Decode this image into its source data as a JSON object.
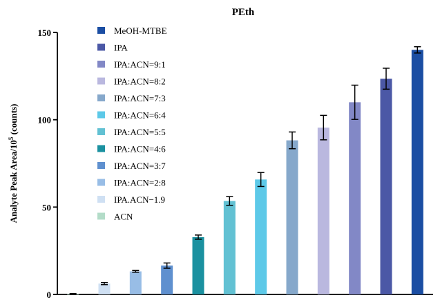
{
  "chart_data": {
    "type": "bar",
    "title": "PEth",
    "xlabel": "",
    "ylabel": "Analyte Peak Area/10",
    "ylabel_superscript": "5",
    "ylabel_suffix": " (counts)",
    "ylim": [
      0,
      150
    ],
    "yticks": [
      0,
      50,
      100,
      150
    ],
    "grid": false,
    "legend_position": "top-left",
    "categories": [
      "ACN",
      "IPA:ACN=1:9",
      "IPA:ACN=2:8",
      "IPA:ACN=3:7",
      "IPA:ACN=4:6",
      "IPA:ACN=5:5",
      "IPA:ACN=6:4",
      "IPA:ACN=7:3",
      "IPA:ACN=8:2",
      "IPA:ACN=9:1",
      "IPA",
      "MeOH-MTBE"
    ],
    "values": [
      0.3,
      6.2,
      13.2,
      16.5,
      32.8,
      53.5,
      65.8,
      88.2,
      95.5,
      110.0,
      123.5,
      140.0
    ],
    "errors": [
      0.2,
      0.6,
      0.5,
      1.5,
      1.2,
      2.5,
      4.0,
      4.8,
      7.0,
      9.8,
      6.0,
      1.8
    ],
    "colors": [
      "#b3dcc8",
      "#cfe0f3",
      "#98bde6",
      "#5f90cf",
      "#1b91a0",
      "#62c1d3",
      "#5dc9e8",
      "#86a8cb",
      "#bab8df",
      "#8288c6",
      "#4b58a6",
      "#1b4ea3"
    ],
    "legend": [
      {
        "label": "MeOH-MTBE",
        "color": "#1b4ea3"
      },
      {
        "label": "IPA",
        "color": "#4b58a6"
      },
      {
        "label": "IPA:ACN=9:1",
        "color": "#8288c6"
      },
      {
        "label": "IPA:ACN=8:2",
        "color": "#bab8df"
      },
      {
        "label": "IPA:ACN=7:3",
        "color": "#86a8cb"
      },
      {
        "label": "IPA:ACN=6:4",
        "color": "#5dc9e8"
      },
      {
        "label": "IPA:ACN=5:5",
        "color": "#62c1d3"
      },
      {
        "label": "IPA:ACN=4:6",
        "color": "#1b91a0"
      },
      {
        "label": "IPA:ACN=3:7",
        "color": "#5f90cf"
      },
      {
        "label": "IPA:ACN=2:8",
        "color": "#98bde6"
      },
      {
        "label": "IPA.ACN−1.9",
        "color": "#cfe0f3"
      },
      {
        "label": "ACN",
        "color": "#b3dcc8"
      }
    ]
  }
}
